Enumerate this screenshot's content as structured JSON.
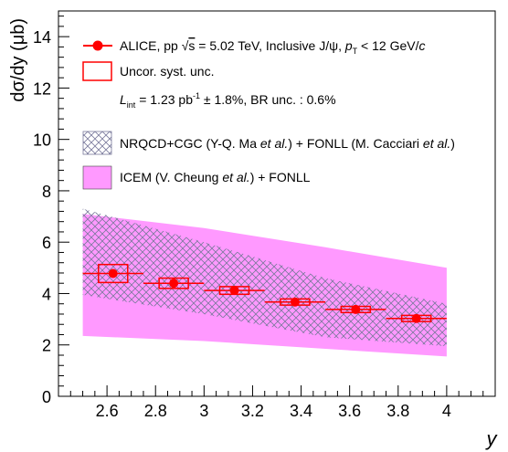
{
  "chart_data": {
    "type": "scatter",
    "title": "",
    "xlabel": "y",
    "ylabel": "dσ/dy (μb)",
    "xlim": [
      2.4,
      4.2
    ],
    "ylim": [
      0,
      15
    ],
    "x_ticks": [
      2.6,
      2.8,
      3,
      3.2,
      3.4,
      3.6,
      3.8,
      4
    ],
    "x_tick_labels": [
      "2.6",
      "2.8",
      "3",
      "3.2",
      "3.4",
      "3.6",
      "3.8",
      "4"
    ],
    "y_ticks": [
      0,
      2,
      4,
      6,
      8,
      10,
      12,
      14
    ],
    "y_tick_labels": [
      "0",
      "2",
      "4",
      "6",
      "8",
      "10",
      "12",
      "14"
    ],
    "grid": false,
    "legend_placement": "top-left",
    "series": [
      {
        "name": "ALICE, pp √s = 5.02 TeV, Inclusive J/ψ, pT < 12 GeV/c",
        "kind": "data points",
        "color": "#ff0000",
        "points": [
          {
            "x": 2.625,
            "y": 4.78,
            "x_low": 2.5,
            "x_high": 2.75,
            "syst": 0.35,
            "stat": 0.12
          },
          {
            "x": 2.875,
            "y": 4.4,
            "x_low": 2.75,
            "x_high": 3.0,
            "syst": 0.2,
            "stat": 0.08
          },
          {
            "x": 3.125,
            "y": 4.12,
            "x_low": 3.0,
            "x_high": 3.25,
            "syst": 0.15,
            "stat": 0.06
          },
          {
            "x": 3.375,
            "y": 3.67,
            "x_low": 3.25,
            "x_high": 3.5,
            "syst": 0.12,
            "stat": 0.05
          },
          {
            "x": 3.625,
            "y": 3.38,
            "x_low": 3.5,
            "x_high": 3.75,
            "syst": 0.12,
            "stat": 0.05
          },
          {
            "x": 3.875,
            "y": 3.03,
            "x_low": 3.75,
            "x_high": 4.0,
            "syst": 0.12,
            "stat": 0.05
          }
        ]
      },
      {
        "name": "NRQCD+CGC (Y-Q. Ma et al.) + FONLL (M. Cacciari et al.)",
        "kind": "band",
        "style": "hatched",
        "color": "#8a8aa8",
        "x": [
          2.5,
          3.0,
          3.5,
          4.0
        ],
        "low": [
          3.95,
          3.2,
          2.3,
          1.95
        ],
        "high": [
          7.3,
          6.0,
          4.6,
          3.6
        ]
      },
      {
        "name": "ICEM (V. Cheung et al.) + FONLL",
        "kind": "band",
        "style": "filled",
        "color": "#ff99ff",
        "x": [
          2.5,
          3.0,
          3.5,
          4.0
        ],
        "low": [
          2.35,
          2.15,
          1.85,
          1.55
        ],
        "high": [
          7.1,
          6.55,
          5.8,
          5.0
        ]
      }
    ],
    "legend": {
      "alice_pre": "ALICE, pp ",
      "alice_sqrt": "√",
      "alice_s": "s",
      "alice_mid": " = 5.02 TeV, Inclusive J/ψ, ",
      "alice_p": "p",
      "alice_T": "T",
      "alice_post": " < 12 GeV/",
      "alice_c": "c",
      "syst": "Uncor. syst. unc.",
      "lumi_L": "L",
      "lumi_int": "int",
      "lumi_mid": " = 1.23  pb",
      "lumi_exp": "-1",
      "lumi_post": " ± 1.8%, BR unc. : 0.6%",
      "nrqcd_pre": "NRQCD+CGC (Y-Q. Ma ",
      "nrqcd_etal1": "et al.",
      "nrqcd_mid": ") + FONLL (M. Cacciari ",
      "nrqcd_etal2": "et al.",
      "nrqcd_post": ")",
      "icem_pre": "ICEM (V. Cheung ",
      "icem_etal": "et al.",
      "icem_post": ") + FONLL"
    }
  }
}
